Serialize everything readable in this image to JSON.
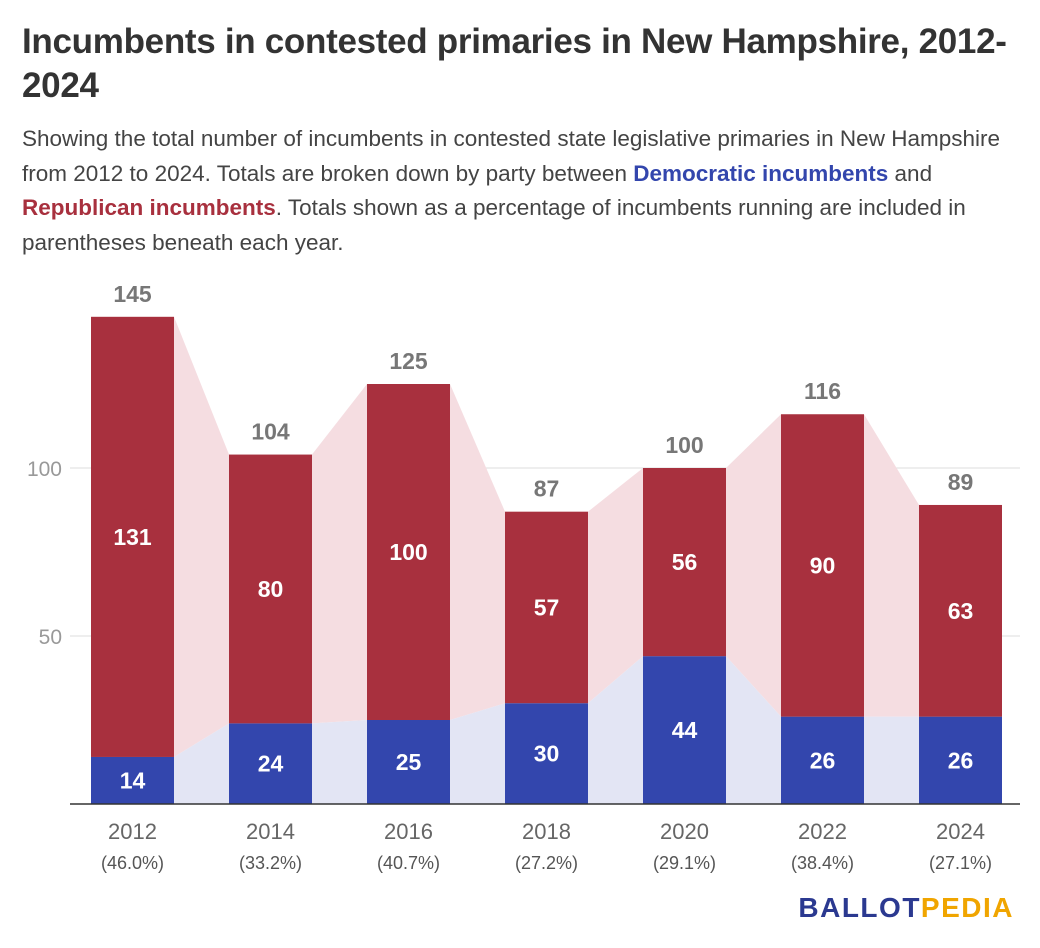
{
  "title": "Incumbents in contested primaries in New Hampshire, 2012-2024",
  "description": {
    "part1": "Showing the total number of incumbents in contested state legislative primaries in New Hampshire from 2012 to 2024. Totals are broken down by party between ",
    "dem_label": "Democratic incumbents",
    "part2": " and ",
    "rep_label": "Republican incumbents",
    "part3": ". Totals shown as a percentage of incumbents running are included in parentheses beneath each year."
  },
  "logo": {
    "part1": "BALLOT",
    "part2": "PEDIA"
  },
  "colors": {
    "democratic": "#3346ad",
    "republican": "#a8303e",
    "democratic_band": "#e3e5f4",
    "republican_band": "#f5dde1",
    "total_label": "#777777",
    "axis_text": "#999999",
    "grid": "#dddddd"
  },
  "chart_data": {
    "type": "bar",
    "stacked": true,
    "categories": [
      "2012",
      "2014",
      "2016",
      "2018",
      "2020",
      "2022",
      "2024"
    ],
    "subcategories": [
      "(46.0%)",
      "(33.2%)",
      "(40.7%)",
      "(27.2%)",
      "(29.1%)",
      "(38.4%)",
      "(27.1%)"
    ],
    "series": [
      {
        "name": "Democratic incumbents",
        "values": [
          14,
          24,
          25,
          30,
          44,
          26,
          26
        ]
      },
      {
        "name": "Republican incumbents",
        "values": [
          131,
          80,
          100,
          57,
          56,
          90,
          63
        ]
      }
    ],
    "totals": [
      145,
      104,
      125,
      87,
      100,
      116,
      89
    ],
    "yticks": [
      50,
      100
    ],
    "ylim": [
      0,
      150
    ],
    "grid": true,
    "legend": "inline in subtitle"
  }
}
